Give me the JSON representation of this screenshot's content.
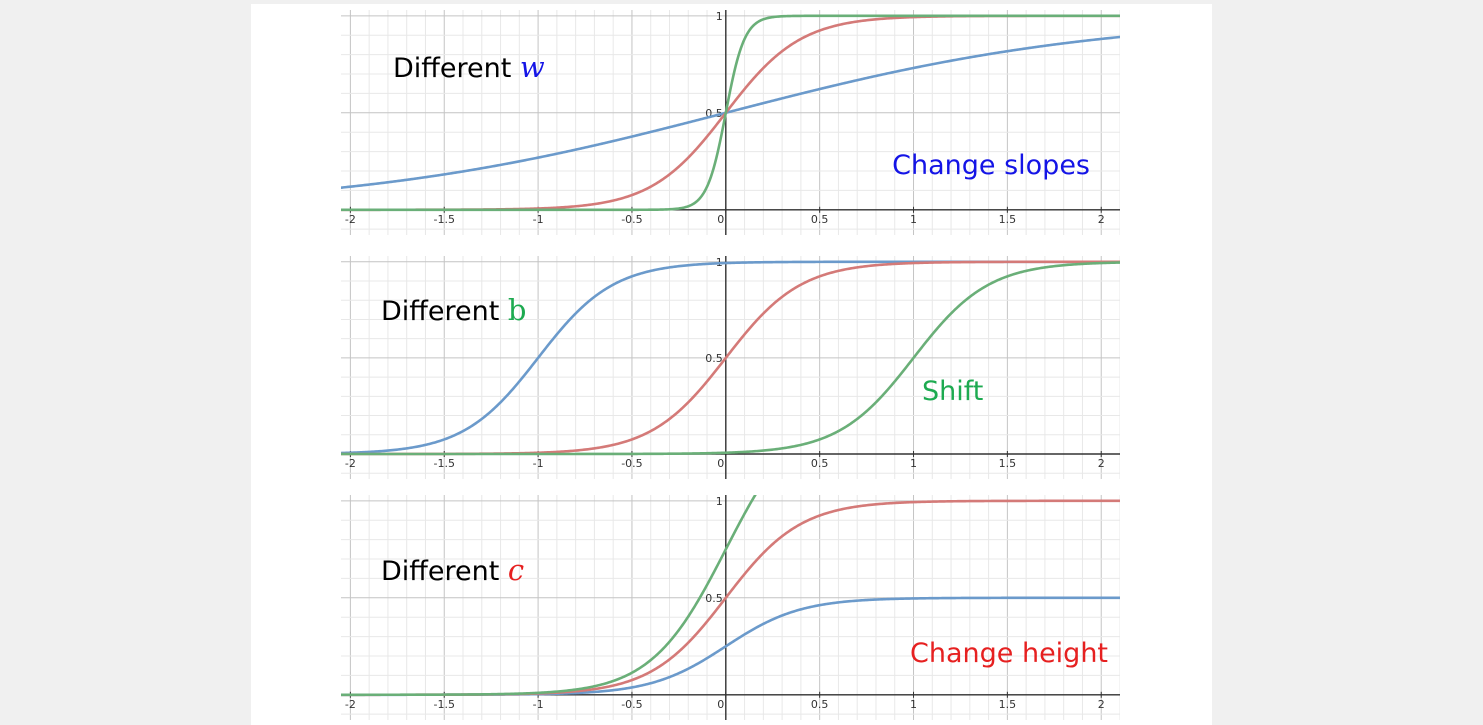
{
  "chart_data": [
    {
      "type": "line",
      "xlim": [
        -2.05,
        2.1
      ],
      "ylim": [
        -0.13,
        1.03
      ],
      "x_ticks": [
        "-2",
        "-1.5",
        "-1",
        "-0.5",
        "0",
        "0.5",
        "1",
        "1.5",
        "2"
      ],
      "y_ticks": [
        "0.5",
        "1"
      ],
      "grid": true,
      "label_prefix": "Different ",
      "label_param": "w",
      "annotation": "Change slopes",
      "param_color": "#1414e6",
      "annotation_color": "#1414e6",
      "series": [
        {
          "color": "#6b9acb",
          "w": 1,
          "b": 0,
          "c": 1
        },
        {
          "color": "#d47a78",
          "w": 5,
          "b": 0,
          "c": 1
        },
        {
          "color": "#6aaf78",
          "w": 20,
          "b": 0,
          "c": 1
        }
      ]
    },
    {
      "type": "line",
      "xlim": [
        -2.05,
        2.1
      ],
      "ylim": [
        -0.13,
        1.03
      ],
      "x_ticks": [
        "-2",
        "-1.5",
        "-1",
        "-0.5",
        "0",
        "0.5",
        "1",
        "1.5",
        "2"
      ],
      "y_ticks": [
        "0.5",
        "1"
      ],
      "grid": true,
      "label_prefix": "Different ",
      "label_param": "b",
      "annotation": "Shift",
      "param_color": "#1daa50",
      "annotation_color": "#1daa50",
      "series": [
        {
          "color": "#6b9acb",
          "w": 5,
          "b": 5,
          "c": 1
        },
        {
          "color": "#d47a78",
          "w": 5,
          "b": 0,
          "c": 1
        },
        {
          "color": "#6aaf78",
          "w": 5,
          "b": -5,
          "c": 1
        }
      ]
    },
    {
      "type": "line",
      "xlim": [
        -2.05,
        2.1
      ],
      "ylim": [
        -0.13,
        1.03
      ],
      "x_ticks": [
        "-2",
        "-1.5",
        "-1",
        "-0.5",
        "0",
        "0.5",
        "1",
        "1.5",
        "2"
      ],
      "y_ticks": [
        "0.5",
        "1"
      ],
      "grid": true,
      "label_prefix": "Different ",
      "label_param": "c",
      "annotation": "Change height",
      "param_color": "#e62020",
      "annotation_color": "#e62020",
      "series": [
        {
          "color": "#6b9acb",
          "w": 5,
          "b": 0,
          "c": 0.5
        },
        {
          "color": "#d47a78",
          "w": 5,
          "b": 0,
          "c": 1
        },
        {
          "color": "#6aaf78",
          "w": 5,
          "b": 0,
          "c": 1.5
        }
      ]
    }
  ]
}
